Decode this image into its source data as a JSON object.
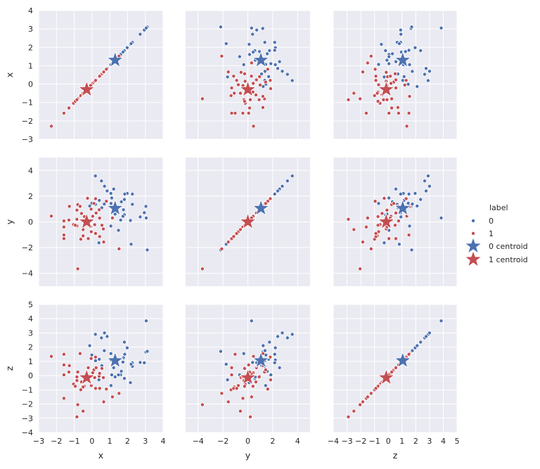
{
  "chart_data": {
    "type": "scatter",
    "kind": "pairplot",
    "variables": [
      "x",
      "y",
      "z"
    ],
    "axis_labels": {
      "x": "x",
      "y": "y",
      "z": "z"
    },
    "axis_ranges": {
      "x": [
        -3,
        4
      ],
      "y": [
        -5,
        5
      ],
      "z": [
        -4,
        5
      ]
    },
    "ticks": {
      "x": [
        "-3",
        "-2",
        "-1",
        "0",
        "1",
        "2",
        "3",
        "4"
      ],
      "y": [
        "-4",
        "-2",
        "0",
        "2",
        "4"
      ],
      "z": [
        "-4",
        "-3",
        "-2",
        "-1",
        "0",
        "1",
        "2",
        "3",
        "4",
        "5"
      ]
    },
    "grid": true,
    "legend": {
      "title": "label",
      "placement": "right",
      "entries": [
        {
          "label": "0",
          "marker": "point",
          "color": "#4C72B0"
        },
        {
          "label": "1",
          "marker": "point",
          "color": "#C44E52"
        },
        {
          "label": "0 centroid",
          "marker": "star",
          "color": "#4C72B0"
        },
        {
          "label": "1 centroid",
          "marker": "star",
          "color": "#C44E52"
        }
      ]
    },
    "series": [
      {
        "name": "0",
        "color": "#4C72B0",
        "points": [
          [
            0.19,
            3.57,
            2.9
          ],
          [
            0.53,
            3.18,
            2.65
          ],
          [
            0.7,
            2.77,
            3.0
          ],
          [
            1.22,
            2.55,
            0.55
          ],
          [
            1.06,
            2.21,
            1.1
          ],
          [
            1.98,
            2.21,
            1.95
          ],
          [
            1.84,
            2.16,
            1.5
          ],
          [
            2.27,
            2.16,
            0.9
          ],
          [
            1.11,
            1.85,
            0.05
          ],
          [
            1.82,
            1.74,
            2.35
          ],
          [
            1.65,
            1.56,
            0.3
          ],
          [
            0.41,
            1.67,
            1.15
          ],
          [
            -0.13,
            1.23,
            2.1
          ],
          [
            -0.01,
            1.45,
            1.45
          ],
          [
            1.07,
            1.43,
            -0.7
          ],
          [
            2.27,
            1.36,
            0.65
          ],
          [
            3.03,
            1.2,
            1.65
          ],
          [
            1.77,
            0.94,
            1.25
          ],
          [
            1.82,
            0.56,
            -0.2
          ],
          [
            2.94,
            0.71,
            0.9
          ],
          [
            1.74,
            0.43,
            0.95
          ],
          [
            2.71,
            0.38,
            0.92
          ],
          [
            1.61,
            0.14,
            0.05
          ],
          [
            2.16,
            0.11,
            -0.5
          ],
          [
            1.06,
            -0.33,
            1.55
          ],
          [
            1.49,
            -0.66,
            0.05
          ],
          [
            0.39,
            -1.63,
            -0.3
          ],
          [
            2.2,
            -1.74,
            0.8
          ],
          [
            3.11,
            -2.18,
            1.7
          ],
          [
            0.2,
            1.36,
            1.05
          ],
          [
            0.69,
            1.38,
            1.75
          ],
          [
            0.85,
            2.4,
            2.75
          ],
          [
            0.55,
            1.1,
            0.7
          ],
          [
            1.3,
            0.6,
            -0.1
          ],
          [
            3.05,
            0.3,
            3.85
          ]
        ]
      },
      {
        "name": "1",
        "color": "#C44E52",
        "points": [
          [
            -2.29,
            0.45,
            1.35
          ],
          [
            -1.27,
            1.21,
            0.7
          ],
          [
            -0.8,
            1.34,
            0.25
          ],
          [
            -0.25,
            1.83,
            -0.3
          ],
          [
            0.2,
            1.8,
            1.3
          ],
          [
            0.81,
            1.6,
            -0.95
          ],
          [
            -0.67,
            1.21,
            1.55
          ],
          [
            0.11,
            1.43,
            0.4
          ],
          [
            -0.05,
            0.99,
            1.2
          ],
          [
            0.4,
            0.94,
            -0.05
          ],
          [
            -0.85,
            0.91,
            -0.1
          ],
          [
            -0.59,
            0.65,
            -0.45
          ],
          [
            0.23,
            0.69,
            0.55
          ],
          [
            -0.43,
            0.41,
            -0.75
          ],
          [
            0.04,
            0.43,
            0.2
          ],
          [
            0.43,
            0.29,
            0.15
          ],
          [
            -1.58,
            0.07,
            0.75
          ],
          [
            -1.3,
            0.14,
            0.25
          ],
          [
            -1.04,
            -0.21,
            -0.6
          ],
          [
            -0.85,
            -0.31,
            -0.35
          ],
          [
            0.15,
            -0.22,
            -0.15
          ],
          [
            0.56,
            -0.26,
            0.5
          ],
          [
            0.64,
            -0.55,
            -0.15
          ],
          [
            -0.04,
            -0.77,
            -0.7
          ],
          [
            -1.58,
            -1.02,
            1.5
          ],
          [
            -1.58,
            -1.3,
            0.05
          ],
          [
            -0.5,
            -1.09,
            -0.8
          ],
          [
            -0.63,
            -1.35,
            -1.0
          ],
          [
            -0.21,
            -1.3,
            0.55
          ],
          [
            0.43,
            -1.14,
            -0.9
          ],
          [
            0.66,
            -1.57,
            -1.85
          ],
          [
            1.52,
            -2.1,
            -1.25
          ],
          [
            -0.8,
            -3.65,
            -2.05
          ],
          [
            -0.94,
            -0.26,
            -0.75
          ],
          [
            -0.08,
            -0.39,
            -0.1
          ],
          [
            -1.58,
            -0.4,
            -1.6
          ],
          [
            -0.85,
            0.2,
            -2.9
          ],
          [
            -0.5,
            -0.6,
            -2.5
          ],
          [
            1.15,
            0.3,
            -1.5
          ],
          [
            0.2,
            -0.9,
            -0.9
          ]
        ]
      }
    ],
    "centroids": [
      {
        "name": "0 centroid",
        "color": "#4C72B0",
        "point": [
          1.3,
          1.05,
          1.05
        ]
      },
      {
        "name": "1 centroid",
        "color": "#C44E52",
        "point": [
          -0.3,
          0.0,
          -0.15
        ]
      }
    ]
  }
}
